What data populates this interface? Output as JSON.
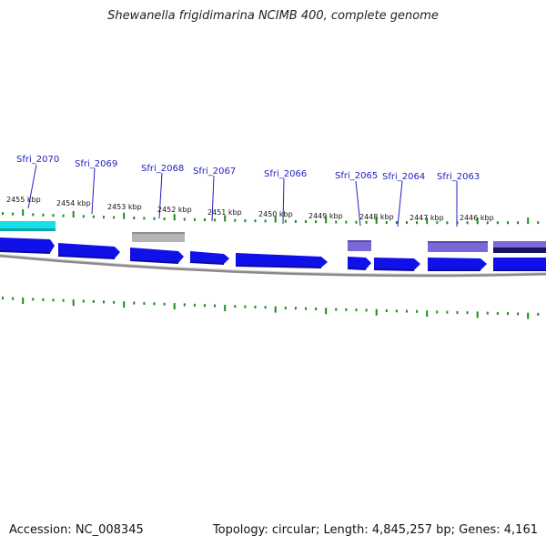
{
  "title": "Shewanella frigidimarina NCIMB 400, complete genome",
  "accession_text": "Accession: NC_008345",
  "summary_text": "Topology: circular; Length: 4,845,257 bp; Genes: 4,161",
  "colors": {
    "gene_label": "#2020c0",
    "tick": "#1a8a1a",
    "forward_gene": "#1010e8",
    "cyan_gene": "#19e0e8",
    "pseudo_gene": "#b4b4b4",
    "purple_gene": "#7b68d8",
    "backbone": "#8a8a8a"
  },
  "genes": [
    {
      "label": "Sfri_2070"
    },
    {
      "label": "Sfri_2069"
    },
    {
      "label": "Sfri_2068"
    },
    {
      "label": "Sfri_2067"
    },
    {
      "label": "Sfri_2066"
    },
    {
      "label": "Sfri_2065"
    },
    {
      "label": "Sfri_2064"
    },
    {
      "label": "Sfri_2063"
    }
  ],
  "kbp_labels": [
    "2455 kbp",
    "2454 kbp",
    "2453 kbp",
    "2452 kbp",
    "2451 kbp",
    "2450 kbp",
    "2449 kbp",
    "2448 kbp",
    "2447 kbp",
    "2446 kbp"
  ]
}
